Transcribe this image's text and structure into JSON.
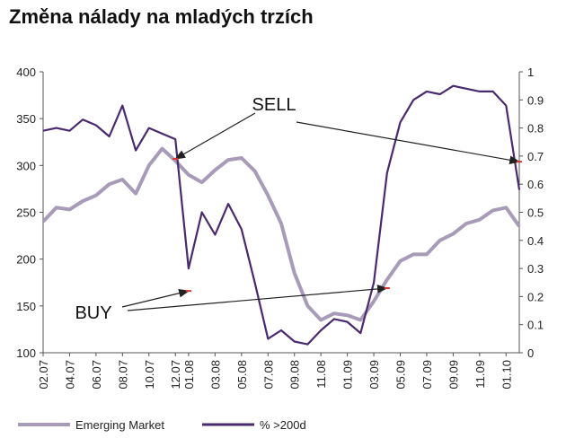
{
  "chart_data": {
    "type": "line",
    "title": "Změna nálady na mladých trzích",
    "x": [
      "02.07",
      "04.07",
      "06.07",
      "08.07",
      "10.07",
      "12.07",
      "01.08",
      "03.08",
      "05.08",
      "07.08",
      "09.08",
      "11.08",
      "01.09",
      "03.09",
      "05.09",
      "07.09",
      "09.09",
      "11.09",
      "01.10"
    ],
    "ylim_left": [
      100,
      400
    ],
    "yticks_left": [
      100,
      150,
      200,
      250,
      300,
      350,
      400
    ],
    "ylim_right": [
      0,
      1
    ],
    "yticks_right": [
      0,
      0.1,
      0.2,
      0.3,
      0.4,
      0.5,
      0.6,
      0.7,
      0.8,
      0.9,
      1
    ],
    "grid": false,
    "legend_position": "bottom",
    "series": [
      {
        "name": "Emerging Market",
        "axis": "left",
        "color": "#a89bb8",
        "points": [
          [
            "02.07",
            240
          ],
          [
            "03.07",
            255
          ],
          [
            "04.07",
            253
          ],
          [
            "05.07",
            262
          ],
          [
            "06.07",
            268
          ],
          [
            "07.07",
            280
          ],
          [
            "08.07",
            285
          ],
          [
            "09.07",
            270
          ],
          [
            "10.07",
            300
          ],
          [
            "11.07",
            318
          ],
          [
            "12.07",
            305
          ],
          [
            "01.08",
            290
          ],
          [
            "02.08",
            282
          ],
          [
            "03.08",
            295
          ],
          [
            "04.08",
            306
          ],
          [
            "05.08",
            308
          ],
          [
            "06.08",
            294
          ],
          [
            "07.08",
            268
          ],
          [
            "08.08",
            238
          ],
          [
            "09.08",
            185
          ],
          [
            "10.08",
            150
          ],
          [
            "11.08",
            135
          ],
          [
            "12.08",
            142
          ],
          [
            "01.09",
            140
          ],
          [
            "02.09",
            135
          ],
          [
            "03.09",
            155
          ],
          [
            "04.09",
            178
          ],
          [
            "05.09",
            198
          ],
          [
            "06.09",
            205
          ],
          [
            "07.09",
            205
          ],
          [
            "08.09",
            220
          ],
          [
            "09.09",
            227
          ],
          [
            "10.09",
            238
          ],
          [
            "11.09",
            242
          ],
          [
            "12.09",
            252
          ],
          [
            "01.10",
            255
          ],
          [
            "02.10",
            235
          ]
        ]
      },
      {
        "name": "% >200d",
        "axis": "right",
        "color": "#4a2a6e",
        "points": [
          [
            "02.07",
            0.79
          ],
          [
            "03.07",
            0.8
          ],
          [
            "04.07",
            0.79
          ],
          [
            "05.07",
            0.83
          ],
          [
            "06.07",
            0.81
          ],
          [
            "07.07",
            0.77
          ],
          [
            "08.07",
            0.88
          ],
          [
            "09.07",
            0.72
          ],
          [
            "10.07",
            0.8
          ],
          [
            "11.07",
            0.78
          ],
          [
            "12.07",
            0.76
          ],
          [
            "01.08",
            0.3
          ],
          [
            "02.08",
            0.5
          ],
          [
            "03.08",
            0.42
          ],
          [
            "04.08",
            0.53
          ],
          [
            "05.08",
            0.44
          ],
          [
            "06.08",
            0.25
          ],
          [
            "07.08",
            0.05
          ],
          [
            "08.08",
            0.08
          ],
          [
            "09.08",
            0.04
          ],
          [
            "10.08",
            0.03
          ],
          [
            "11.08",
            0.08
          ],
          [
            "12.08",
            0.12
          ],
          [
            "01.09",
            0.11
          ],
          [
            "02.09",
            0.07
          ],
          [
            "03.09",
            0.25
          ],
          [
            "04.09",
            0.64
          ],
          [
            "05.09",
            0.82
          ],
          [
            "06.09",
            0.9
          ],
          [
            "07.09",
            0.93
          ],
          [
            "08.09",
            0.92
          ],
          [
            "09.09",
            0.95
          ],
          [
            "10.09",
            0.94
          ],
          [
            "11.09",
            0.93
          ],
          [
            "12.09",
            0.93
          ],
          [
            "01.10",
            0.88
          ],
          [
            "02.10",
            0.58
          ]
        ]
      }
    ],
    "annotations": [
      {
        "text": "SELL",
        "targets": [
          [
            "12.07",
            0.69
          ],
          [
            "02.10",
            0.68
          ]
        ]
      },
      {
        "text": "BUY",
        "targets": [
          [
            "01.08",
            0.22
          ],
          [
            "04.09",
            0.23
          ]
        ]
      }
    ]
  },
  "colors": {
    "marker": "#e03030",
    "axis": "#555555",
    "arrow": "#222222"
  }
}
